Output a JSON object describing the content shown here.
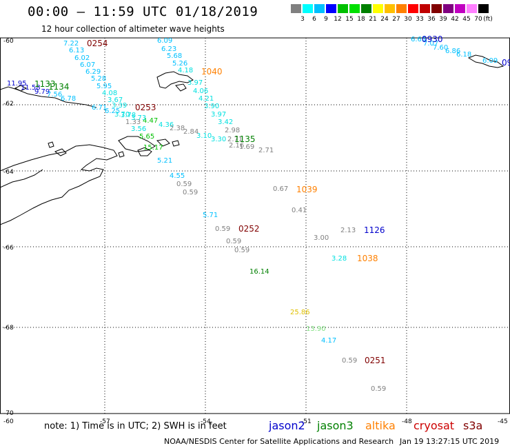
{
  "title": "00:00 – 11:59 UTC 01/18/2019",
  "subtitle": "12 hour collection of altimeter wave heights",
  "legend": {
    "unit": "(ft)",
    "ticks": [
      "3",
      "6",
      "9",
      "12",
      "15",
      "18",
      "21",
      "24",
      "27",
      "30",
      "33",
      "36",
      "39",
      "42",
      "45",
      "70"
    ],
    "colors": [
      "#808080",
      "#00ffff",
      "#00c0ff",
      "#0000ff",
      "#00c000",
      "#00e000",
      "#008000",
      "#ffff00",
      "#ffc000",
      "#ff8000",
      "#ff0000",
      "#c00000",
      "#800000",
      "#800080",
      "#c000c0",
      "#ff80ff",
      "#000000"
    ]
  },
  "axes": {
    "lon_labels": [
      "-60",
      "-57",
      "-54",
      "-51",
      "-48",
      "-45"
    ],
    "lat_labels": [
      "-60",
      "-62",
      "-64",
      "-66",
      "-68",
      "-70"
    ]
  },
  "satellites": [
    {
      "name": "jason2",
      "color": "#0000cc"
    },
    {
      "name": "jason3",
      "color": "#008000"
    },
    {
      "name": "altika",
      "color": "#ff8000"
    },
    {
      "name": "cryosat",
      "color": "#cc0000"
    },
    {
      "name": "s3a",
      "color": "#800000"
    }
  ],
  "note": "note: 1) Time is in UTC; 2) SWH is in feet",
  "footer_left": "NOAA/NESDIS Center for Satellite Applications and Research",
  "footer_right": "Jan 19 13:27:15 UTC 2019",
  "track_labels": [
    {
      "text": "0254",
      "color": "#800000"
    },
    {
      "text": "0253",
      "color": "#800000"
    },
    {
      "text": "0252",
      "color": "#800000"
    },
    {
      "text": "0251",
      "color": "#800000"
    },
    {
      "text": "1040",
      "color": "#ff8000"
    },
    {
      "text": "1039",
      "color": "#ff8000"
    },
    {
      "text": "1038",
      "color": "#ff8000"
    },
    {
      "text": "1133",
      "color": "#008000"
    },
    {
      "text": "1134",
      "color": "#008000"
    },
    {
      "text": "1135",
      "color": "#008000"
    },
    {
      "text": "1126",
      "color": "#0000cc"
    },
    {
      "text": "0930",
      "color": "#0000cc"
    },
    {
      "text": "09",
      "color": "#0000cc"
    }
  ],
  "swh_values": [
    {
      "text": "7.22",
      "color": "#00c0ff"
    },
    {
      "text": "6.13",
      "color": "#00c0ff"
    },
    {
      "text": "6.02",
      "color": "#00c0ff"
    },
    {
      "text": "6.07",
      "color": "#00c0ff"
    },
    {
      "text": "6.29",
      "color": "#00c0ff"
    },
    {
      "text": "5.28",
      "color": "#00c0ff"
    },
    {
      "text": "5.95",
      "color": "#00c0ff"
    },
    {
      "text": "4.08",
      "color": "#00e0e0"
    },
    {
      "text": "3.67",
      "color": "#00e0e0"
    },
    {
      "text": "3.39",
      "color": "#00e0e0"
    },
    {
      "text": "6.71",
      "color": "#00c0ff"
    },
    {
      "text": "6.25",
      "color": "#00c0ff"
    },
    {
      "text": "3.70",
      "color": "#00e0e0"
    },
    {
      "text": "3.78",
      "color": "#00e0e0"
    },
    {
      "text": "11.95",
      "color": "#0000cc"
    },
    {
      "text": "11.58",
      "color": "#0000cc"
    },
    {
      "text": "9.79",
      "color": "#0000cc"
    },
    {
      "text": "7.56",
      "color": "#00c0ff"
    },
    {
      "text": "6.78",
      "color": "#00c0ff"
    },
    {
      "text": "6.09",
      "color": "#00c0ff"
    },
    {
      "text": "6.23",
      "color": "#00c0ff"
    },
    {
      "text": "5.68",
      "color": "#00c0ff"
    },
    {
      "text": "5.26",
      "color": "#00c0ff"
    },
    {
      "text": "4.18",
      "color": "#00e0e0"
    },
    {
      "text": "3.97",
      "color": "#00e0e0"
    },
    {
      "text": "4.06",
      "color": "#00e0e0"
    },
    {
      "text": "4.21",
      "color": "#00e0e0"
    },
    {
      "text": "3.90",
      "color": "#00e0e0"
    },
    {
      "text": "3.97",
      "color": "#00e0e0"
    },
    {
      "text": "3.42",
      "color": "#00e0e0"
    },
    {
      "text": "3.10",
      "color": "#00e0e0"
    },
    {
      "text": "3.30",
      "color": "#00e0e0"
    },
    {
      "text": "2.98",
      "color": "#808080"
    },
    {
      "text": "2.71",
      "color": "#808080"
    },
    {
      "text": "2.16",
      "color": "#808080"
    },
    {
      "text": "1.69",
      "color": "#808080"
    },
    {
      "text": "2.71",
      "color": "#808080"
    },
    {
      "text": "1.33",
      "color": "#808080"
    },
    {
      "text": "4.47",
      "color": "#00c000"
    },
    {
      "text": "4.36",
      "color": "#00e0e0"
    },
    {
      "text": "2.38",
      "color": "#808080"
    },
    {
      "text": "2.84",
      "color": "#808080"
    },
    {
      "text": "3.56",
      "color": "#00e0e0"
    },
    {
      "text": "3.73",
      "color": "#00e0e0"
    },
    {
      "text": "5.65",
      "color": "#00c000"
    },
    {
      "text": "15.17",
      "color": "#00c000"
    },
    {
      "text": "5.21",
      "color": "#00c0ff"
    },
    {
      "text": "4.55",
      "color": "#00c0ff"
    },
    {
      "text": "0.59",
      "color": "#808080"
    },
    {
      "text": "0.59",
      "color": "#808080"
    },
    {
      "text": "0.67",
      "color": "#808080"
    },
    {
      "text": "0.41",
      "color": "#808080"
    },
    {
      "text": "5.71",
      "color": "#00c0ff"
    },
    {
      "text": "0.59",
      "color": "#808080"
    },
    {
      "text": "0.59",
      "color": "#808080"
    },
    {
      "text": "0.59",
      "color": "#808080"
    },
    {
      "text": "3.00",
      "color": "#808080"
    },
    {
      "text": "2.13",
      "color": "#808080"
    },
    {
      "text": "3.28",
      "color": "#00e0e0"
    },
    {
      "text": "16.14",
      "color": "#008000"
    },
    {
      "text": "25.86",
      "color": "#e0c000"
    },
    {
      "text": "13.90",
      "color": "#80e080"
    },
    {
      "text": "4.17",
      "color": "#00c0ff"
    },
    {
      "text": "0.59",
      "color": "#808080"
    },
    {
      "text": "0.59",
      "color": "#808080"
    },
    {
      "text": "6.65",
      "color": "#00c0ff"
    },
    {
      "text": "7.07",
      "color": "#00c0ff"
    },
    {
      "text": "7.60",
      "color": "#00c0ff"
    },
    {
      "text": "6.86",
      "color": "#00c0ff"
    },
    {
      "text": "6.18",
      "color": "#00c0ff"
    },
    {
      "text": "6.09",
      "color": "#00c0ff"
    }
  ]
}
